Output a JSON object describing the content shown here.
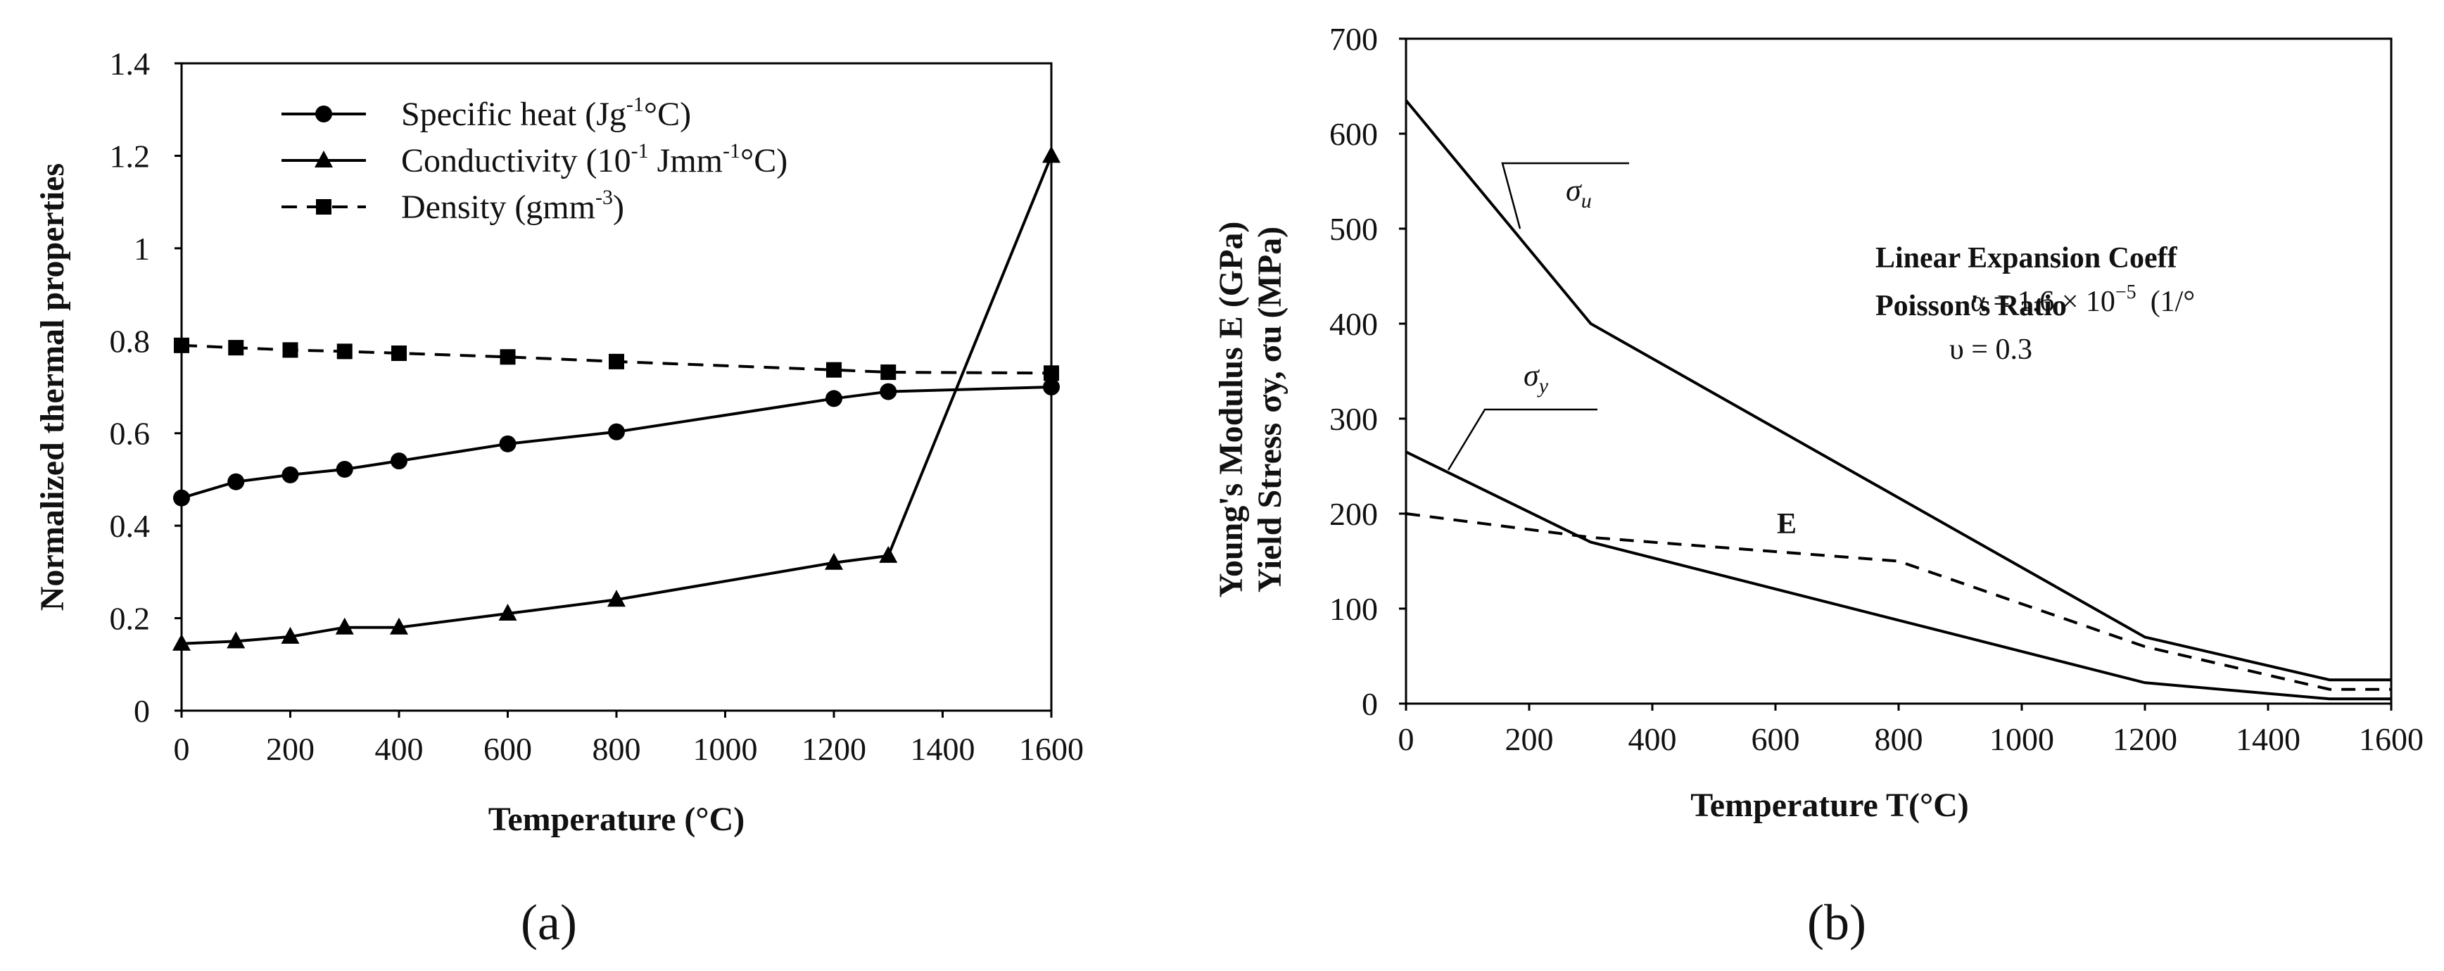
{
  "chart_data": [
    {
      "type": "line",
      "caption": "(a)",
      "xlabel": "Temperature (°C)",
      "ylabel": "Normalized thermal properties",
      "xlim": [
        0,
        1600
      ],
      "ylim": [
        0,
        1.4
      ],
      "xticks": [
        0,
        200,
        400,
        600,
        800,
        1000,
        1200,
        1400,
        1600
      ],
      "xtick_labels": [
        "0",
        "200",
        "400",
        "600",
        "800",
        "1000",
        "1200",
        "1400",
        "1600"
      ],
      "yticks": [
        0,
        0.2,
        0.4,
        0.6,
        0.8,
        1.0,
        1.2,
        1.4
      ],
      "ytick_labels": [
        "0",
        "0.2",
        "0.4",
        "0.6",
        "0.8",
        "1",
        "1.2",
        "1.4"
      ],
      "grid": false,
      "legend_position": "top",
      "series": [
        {
          "name": "Specific heat (Jg-1°C)",
          "legend_main": "Specific heat (Jg",
          "legend_sup": "-1",
          "legend_tail": "°C)",
          "marker": "circle",
          "line": "solid",
          "x": [
            0,
            100,
            200,
            300,
            400,
            600,
            800,
            1200,
            1300,
            1600
          ],
          "y": [
            0.46,
            0.495,
            0.51,
            0.522,
            0.54,
            0.577,
            0.603,
            0.675,
            0.69,
            0.7
          ]
        },
        {
          "name": "Conductivity (10-1 Jmm-1°C)",
          "legend_main": "Conductivity (10",
          "legend_sup": "-1",
          "legend_mid": " Jmm",
          "legend_sup2": "-1",
          "legend_tail": "°C)",
          "marker": "triangle",
          "line": "solid",
          "x": [
            0,
            100,
            200,
            300,
            400,
            600,
            800,
            1200,
            1300,
            1600
          ],
          "y": [
            0.145,
            0.15,
            0.16,
            0.18,
            0.18,
            0.21,
            0.24,
            0.32,
            0.335,
            1.2
          ]
        },
        {
          "name": "Density (gmm-3)",
          "legend_main": "Density (gmm",
          "legend_sup": "-3",
          "legend_tail": ")",
          "marker": "square",
          "line": "dashed",
          "x": [
            0,
            100,
            200,
            300,
            400,
            600,
            800,
            1200,
            1300,
            1600
          ],
          "y": [
            0.79,
            0.785,
            0.78,
            0.777,
            0.773,
            0.765,
            0.755,
            0.737,
            0.732,
            0.73
          ]
        }
      ]
    },
    {
      "type": "line",
      "caption": "(b)",
      "xlabel": "Temperature T(°C)",
      "ylabel_line1": "Young's Modulus E (GPa)",
      "ylabel_line2": "Yield Stress",
      "ylabel_line2_tail": "(MPa)",
      "ylabel_sigma_y": "σy, σu",
      "xlim": [
        0,
        1600
      ],
      "ylim": [
        0,
        700
      ],
      "xticks": [
        0,
        200,
        400,
        600,
        800,
        1000,
        1200,
        1400,
        1600
      ],
      "xtick_labels": [
        "0",
        "200",
        "400",
        "600",
        "800",
        "1000",
        "1200",
        "1400",
        "1600"
      ],
      "yticks": [
        0,
        100,
        200,
        300,
        400,
        500,
        600,
        700
      ],
      "ytick_labels": [
        "0",
        "100",
        "200",
        "300",
        "400",
        "500",
        "600",
        "700"
      ],
      "grid": false,
      "series": [
        {
          "name": "σu",
          "label_base": "σ",
          "label_sub": "u",
          "line": "solid",
          "x": [
            0,
            300,
            1200,
            1500,
            1600
          ],
          "y": [
            635,
            400,
            70,
            25,
            25
          ]
        },
        {
          "name": "σy",
          "label_base": "σ",
          "label_sub": "y",
          "line": "solid",
          "x": [
            0,
            300,
            1200,
            1500,
            1600
          ],
          "y": [
            265,
            170,
            22,
            5,
            5
          ]
        },
        {
          "name": "E",
          "label_base": "E",
          "line": "dashed",
          "x": [
            0,
            300,
            800,
            1200,
            1500,
            1600
          ],
          "y": [
            200,
            175,
            150,
            60,
            15,
            15
          ]
        }
      ],
      "annotations": {
        "expansion_title": "Linear Expansion Coeff",
        "expansion_value": "α = 1.6 × 10",
        "expansion_exp": "−5",
        "expansion_unit": "(1/°",
        "poisson_title": "Poisson's Ratio",
        "poisson_value": "υ = 0.3"
      }
    }
  ]
}
